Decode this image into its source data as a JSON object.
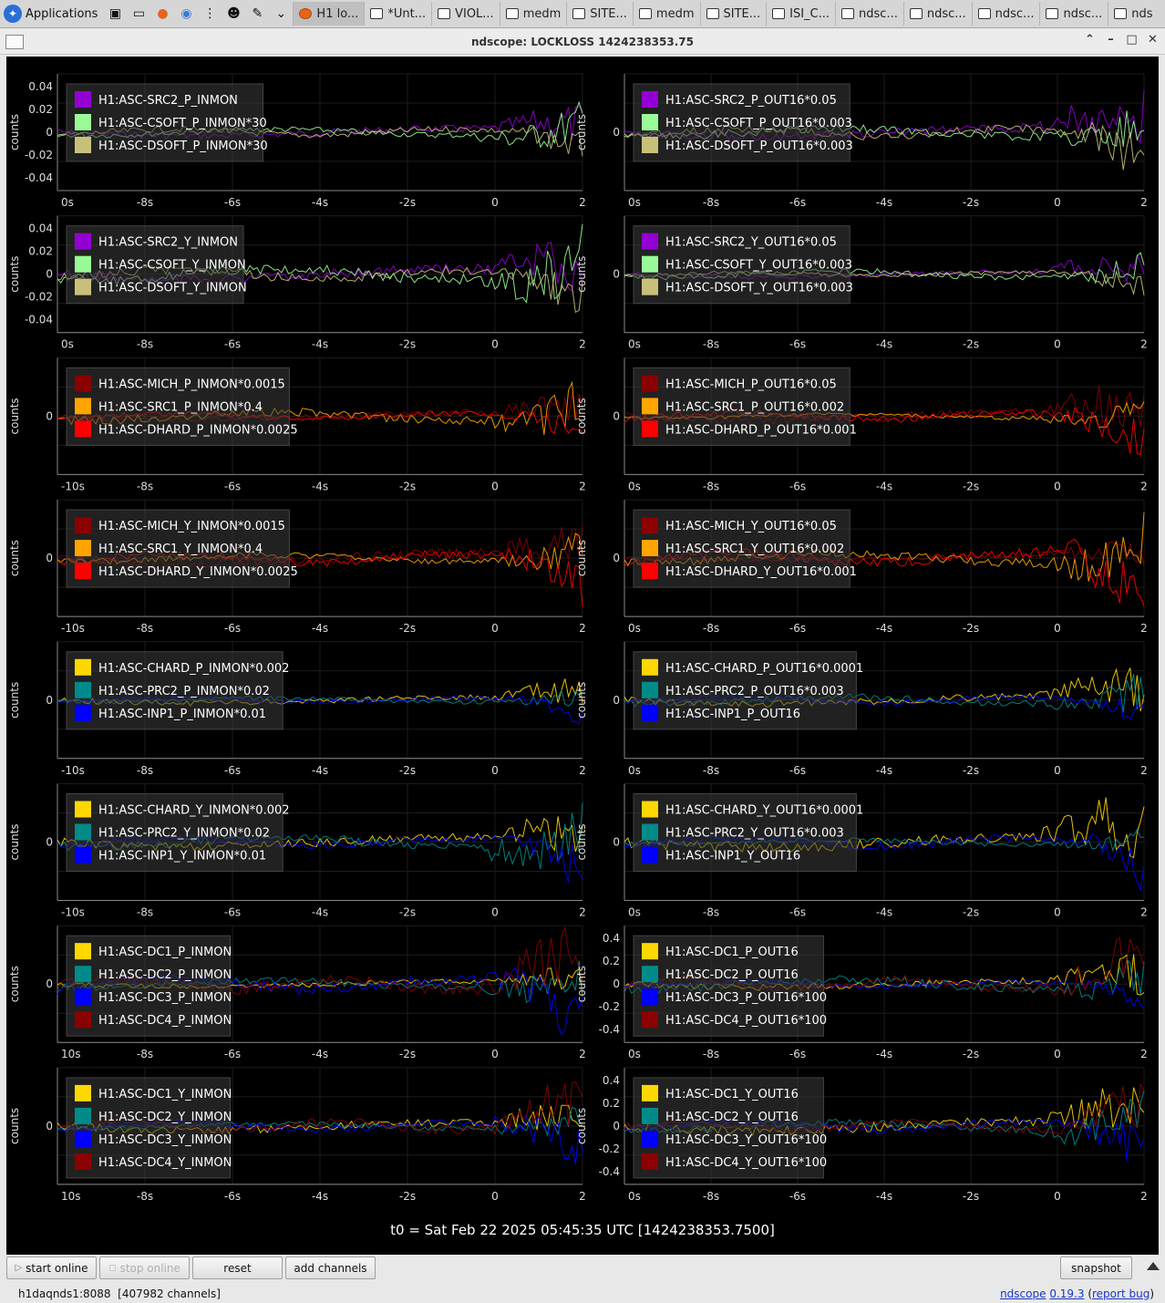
{
  "taskbar": {
    "apps_label": "Applications",
    "tasks": [
      {
        "label": "H1 lo...",
        "icon": "firefox-icon"
      },
      {
        "label": "*Unt...",
        "icon": "text-editor-icon"
      },
      {
        "label": "VIOL...",
        "icon": "terminal-window-icon"
      },
      {
        "label": "medm",
        "icon": "window-icon"
      },
      {
        "label": "SITE...",
        "icon": "terminal-window-icon"
      },
      {
        "label": "medm",
        "icon": "window-icon"
      },
      {
        "label": "SITE...",
        "icon": "terminal-window-icon"
      },
      {
        "label": "ISI_C...",
        "icon": "terminal-window-icon"
      },
      {
        "label": "ndsc...",
        "icon": "window-icon"
      },
      {
        "label": "ndsc...",
        "icon": "window-icon"
      },
      {
        "label": "ndsc...",
        "icon": "window-icon"
      },
      {
        "label": "ndsc...",
        "icon": "window-icon"
      },
      {
        "label": "nds",
        "icon": "window-icon"
      }
    ]
  },
  "window": {
    "title": "ndscope: LOCKLOSS 1424238353.75"
  },
  "colors": {
    "purple": "#9400d3",
    "lightgreen": "#98fb98",
    "khaki": "#c8c07a",
    "darkred": "#8b0000",
    "orange": "#ffa500",
    "red": "#ff0000",
    "gold": "#ffd700",
    "teal": "#008b8b",
    "blue": "#0000ff"
  },
  "axis_label": "counts",
  "t0_label": "t0 = Sat Feb 22 2025 05:45:35 UTC [1424238353.7500]",
  "plots": [
    {
      "legend": [
        "H1:ASC-SRC2_P_INMON",
        "H1:ASC-CSOFT_P_INMON*30",
        "H1:ASC-DSOFT_P_INMON*30"
      ],
      "colors": [
        "purple",
        "lightgreen",
        "khaki"
      ],
      "yticks": [
        "0.04",
        "0.02",
        "0",
        "-0.02",
        "-0.04"
      ],
      "xticks": [
        "0s",
        "-8s",
        "-6s",
        "-4s",
        "-2s",
        "0",
        "2"
      ]
    },
    {
      "legend": [
        "H1:ASC-SRC2_P_OUT16*0.05",
        "H1:ASC-CSOFT_P_OUT16*0.003",
        "H1:ASC-DSOFT_P_OUT16*0.003"
      ],
      "colors": [
        "purple",
        "lightgreen",
        "khaki"
      ],
      "yticks": [
        "0"
      ],
      "xticks": [
        "0s",
        "-8s",
        "-6s",
        "-4s",
        "-2s",
        "0",
        "2"
      ]
    },
    {
      "legend": [
        "H1:ASC-SRC2_Y_INMON",
        "H1:ASC-CSOFT_Y_INMON",
        "H1:ASC-DSOFT_Y_INMON"
      ],
      "colors": [
        "purple",
        "lightgreen",
        "khaki"
      ],
      "yticks": [
        "0.04",
        "0.02",
        "0",
        "-0.02",
        "-0.04"
      ],
      "xticks": [
        "0s",
        "-8s",
        "-6s",
        "-4s",
        "-2s",
        "0",
        "2"
      ]
    },
    {
      "legend": [
        "H1:ASC-SRC2_Y_OUT16*0.05",
        "H1:ASC-CSOFT_Y_OUT16*0.003",
        "H1:ASC-DSOFT_Y_OUT16*0.003"
      ],
      "colors": [
        "purple",
        "lightgreen",
        "khaki"
      ],
      "yticks": [
        "0"
      ],
      "xticks": [
        "0s",
        "-8s",
        "-6s",
        "-4s",
        "-2s",
        "0",
        "2"
      ]
    },
    {
      "legend": [
        "H1:ASC-MICH_P_INMON*0.0015",
        "H1:ASC-SRC1_P_INMON*0.4",
        "H1:ASC-DHARD_P_INMON*0.0025"
      ],
      "colors": [
        "darkred",
        "orange",
        "red"
      ],
      "yticks": [
        "0"
      ],
      "xticks": [
        "-10s",
        "-8s",
        "-6s",
        "-4s",
        "-2s",
        "0",
        "2"
      ]
    },
    {
      "legend": [
        "H1:ASC-MICH_P_OUT16*0.05",
        "H1:ASC-SRC1_P_OUT16*0.002",
        "H1:ASC-DHARD_P_OUT16*0.001"
      ],
      "colors": [
        "darkred",
        "orange",
        "red"
      ],
      "yticks": [
        "0"
      ],
      "xticks": [
        "0s",
        "-8s",
        "-6s",
        "-4s",
        "-2s",
        "0",
        "2"
      ]
    },
    {
      "legend": [
        "H1:ASC-MICH_Y_INMON*0.0015",
        "H1:ASC-SRC1_Y_INMON*0.4",
        "H1:ASC-DHARD_Y_INMON*0.0025"
      ],
      "colors": [
        "darkred",
        "orange",
        "red"
      ],
      "yticks": [
        "0"
      ],
      "xticks": [
        "-10s",
        "-8s",
        "-6s",
        "-4s",
        "-2s",
        "0",
        "2"
      ]
    },
    {
      "legend": [
        "H1:ASC-MICH_Y_OUT16*0.05",
        "H1:ASC-SRC1_Y_OUT16*0.002",
        "H1:ASC-DHARD_Y_OUT16*0.001"
      ],
      "colors": [
        "darkred",
        "orange",
        "red"
      ],
      "yticks": [
        "0"
      ],
      "xticks": [
        "0s",
        "-8s",
        "-6s",
        "-4s",
        "-2s",
        "0",
        "2"
      ]
    },
    {
      "legend": [
        "H1:ASC-CHARD_P_INMON*0.002",
        "H1:ASC-PRC2_P_INMON*0.02",
        "H1:ASC-INP1_P_INMON*0.01"
      ],
      "colors": [
        "gold",
        "teal",
        "blue"
      ],
      "yticks": [
        "0"
      ],
      "xticks": [
        "-10s",
        "-8s",
        "-6s",
        "-4s",
        "-2s",
        "0",
        "2"
      ]
    },
    {
      "legend": [
        "H1:ASC-CHARD_P_OUT16*0.0001",
        "H1:ASC-PRC2_P_OUT16*0.003",
        "H1:ASC-INP1_P_OUT16"
      ],
      "colors": [
        "gold",
        "teal",
        "blue"
      ],
      "yticks": [
        "0"
      ],
      "xticks": [
        "0s",
        "-8s",
        "-6s",
        "-4s",
        "-2s",
        "0",
        "2"
      ]
    },
    {
      "legend": [
        "H1:ASC-CHARD_Y_INMON*0.002",
        "H1:ASC-PRC2_Y_INMON*0.02",
        "H1:ASC-INP1_Y_INMON*0.01"
      ],
      "colors": [
        "gold",
        "teal",
        "blue"
      ],
      "yticks": [
        "0"
      ],
      "xticks": [
        "-10s",
        "-8s",
        "-6s",
        "-4s",
        "-2s",
        "0",
        "2"
      ]
    },
    {
      "legend": [
        "H1:ASC-CHARD_Y_OUT16*0.0001",
        "H1:ASC-PRC2_Y_OUT16*0.003",
        "H1:ASC-INP1_Y_OUT16"
      ],
      "colors": [
        "gold",
        "teal",
        "blue"
      ],
      "yticks": [
        "0"
      ],
      "xticks": [
        "0s",
        "-8s",
        "-6s",
        "-4s",
        "-2s",
        "0",
        "2"
      ]
    },
    {
      "legend": [
        "H1:ASC-DC1_P_INMON",
        "H1:ASC-DC2_P_INMON",
        "H1:ASC-DC3_P_INMON",
        "H1:ASC-DC4_P_INMON"
      ],
      "colors": [
        "gold",
        "teal",
        "blue",
        "darkred"
      ],
      "yticks": [
        "0"
      ],
      "xticks": [
        "10s",
        "-8s",
        "-6s",
        "-4s",
        "-2s",
        "0",
        "2"
      ]
    },
    {
      "legend": [
        "H1:ASC-DC1_P_OUT16",
        "H1:ASC-DC2_P_OUT16",
        "H1:ASC-DC3_P_OUT16*100",
        "H1:ASC-DC4_P_OUT16*100"
      ],
      "colors": [
        "gold",
        "teal",
        "blue",
        "darkred"
      ],
      "yticks": [
        "0.4",
        "0.2",
        "0",
        "-0.2",
        "-0.4"
      ],
      "xticks": [
        "0s",
        "-8s",
        "-6s",
        "-4s",
        "-2s",
        "0",
        "2"
      ]
    },
    {
      "legend": [
        "H1:ASC-DC1_Y_INMON",
        "H1:ASC-DC2_Y_INMON",
        "H1:ASC-DC3_Y_INMON",
        "H1:ASC-DC4_Y_INMON"
      ],
      "colors": [
        "gold",
        "teal",
        "blue",
        "darkred"
      ],
      "yticks": [
        "0"
      ],
      "xticks": [
        "10s",
        "-8s",
        "-6s",
        "-4s",
        "-2s",
        "0",
        "2"
      ]
    },
    {
      "legend": [
        "H1:ASC-DC1_Y_OUT16",
        "H1:ASC-DC2_Y_OUT16",
        "H1:ASC-DC3_Y_OUT16*100",
        "H1:ASC-DC4_Y_OUT16*100"
      ],
      "colors": [
        "gold",
        "teal",
        "blue",
        "darkred"
      ],
      "yticks": [
        "0.4",
        "0.2",
        "0",
        "-0.2",
        "-0.4"
      ],
      "xticks": [
        "0s",
        "-8s",
        "-6s",
        "-4s",
        "-2s",
        "0",
        "2"
      ]
    }
  ],
  "buttons": {
    "start_online": "start online",
    "stop_online": "stop online",
    "reset": "reset",
    "add_channels": "add channels",
    "snapshot": "snapshot"
  },
  "status": {
    "server": "h1daqnds1:8088",
    "channels": "[407982 channels]"
  },
  "version": {
    "app_link": "ndscope",
    "version_link": "0.19.3",
    "report_bug_link": "report bug"
  }
}
